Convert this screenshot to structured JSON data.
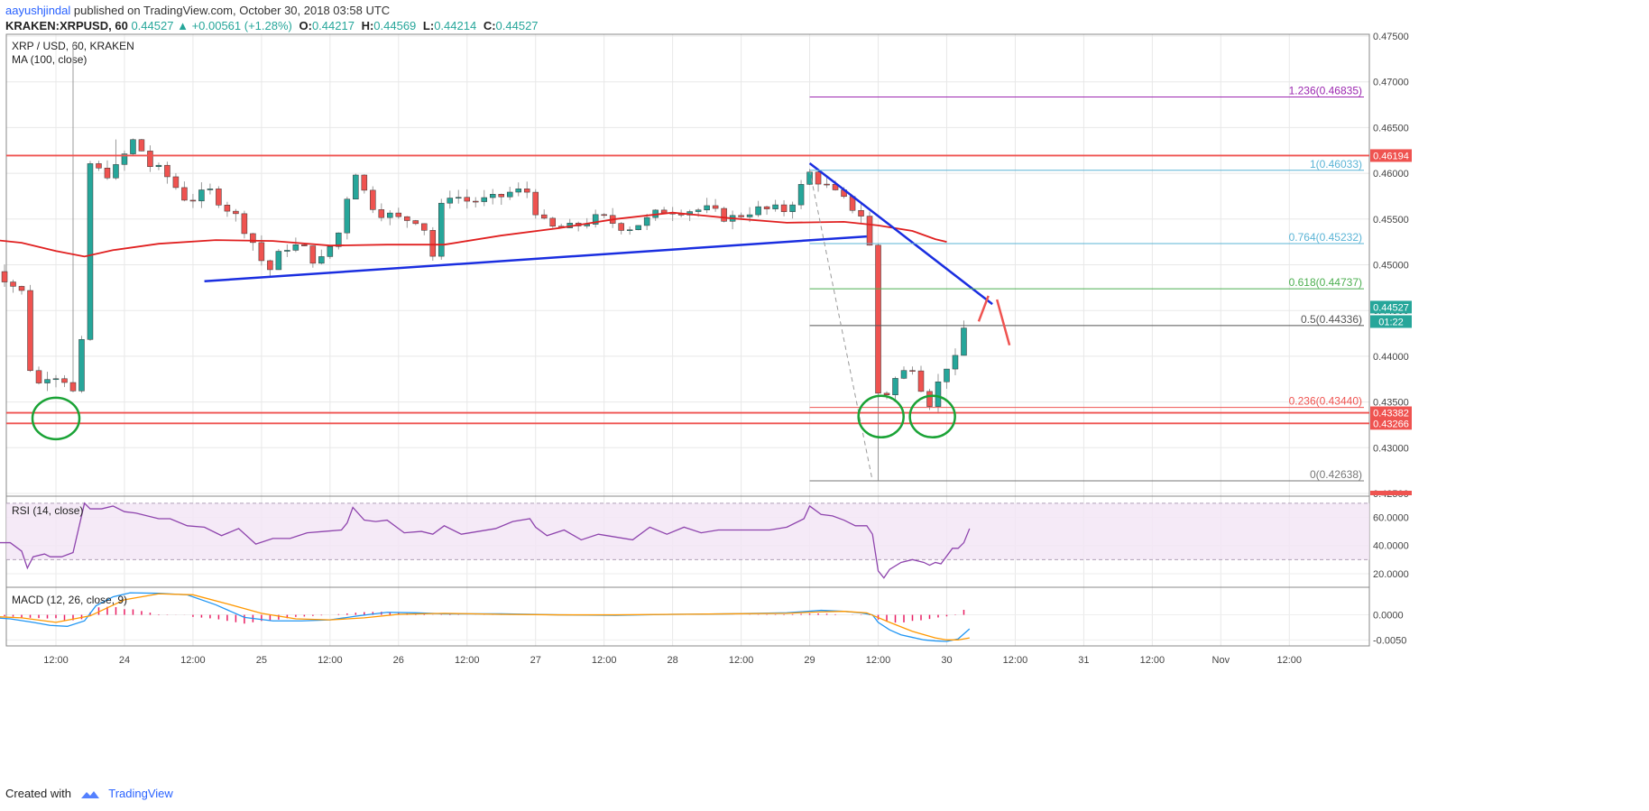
{
  "header": {
    "author": "aayushjindal",
    "published": "published on TradingView.com, October 30, 2018 03:58 UTC",
    "symbol": "KRAKEN:XRPUSD, 60",
    "last": "0.44527",
    "change_arrow": "▲",
    "change": "+0.00561 (+1.28%)",
    "o_label": "O:",
    "o": "0.44217",
    "h_label": "H:",
    "h": "0.44569",
    "l_label": "L:",
    "l": "0.44214",
    "c_label": "C:",
    "c": "0.44527"
  },
  "footer": {
    "created_with": "Created with",
    "brand": "TradingView",
    "logo_icon": "tradingview-logo-icon"
  },
  "colors": {
    "bull": "#26a69a",
    "bear": "#ef5350",
    "ma": "#e02020",
    "trend": "#1a2ee0",
    "fib_purple": "#9c27b0",
    "fib_cyan": "#5bb4d6",
    "fib_green": "#4caf50",
    "rsi": "#8e44ad",
    "macd": "#2196f3",
    "signal": "#ff9800",
    "hist": "#e91e63",
    "circle": "#1aa336"
  },
  "chart_data": [
    {
      "type": "candlestick",
      "title": "XRP / USD, 60, KRAKEN",
      "indicator": "MA (100, close)",
      "ylim": [
        0.4248,
        0.4752
      ],
      "y_ticks": [
        0.425,
        0.43,
        0.435,
        0.44,
        0.445,
        0.45,
        0.455,
        0.46,
        0.465,
        0.47,
        0.475
      ],
      "y_tick_labels": [
        "0.42500",
        "0.43000",
        "0.43500",
        "0.44000",
        "0.44500",
        "0.45000",
        "0.45500",
        "0.46000",
        "0.46500",
        "0.47000",
        "0.47500"
      ],
      "x_tick_labels": [
        "12:00",
        "24",
        "12:00",
        "25",
        "12:00",
        "26",
        "12:00",
        "27",
        "12:00",
        "28",
        "12:00",
        "29",
        "12:00",
        "30",
        "12:00",
        "31",
        "12:00",
        "Nov",
        "12:00"
      ],
      "x_tick_times": [
        12,
        24,
        36,
        48,
        60,
        72,
        84,
        96,
        108,
        120,
        132,
        144,
        156,
        168,
        180,
        192,
        204,
        216,
        228
      ],
      "time_unit": "hours since Oct 23 00:00",
      "close_path": [
        [
          0,
          0.4505
        ],
        [
          4,
          0.448
        ],
        [
          6,
          0.447
        ],
        [
          8,
          0.436
        ],
        [
          10,
          0.438
        ],
        [
          13,
          0.438
        ],
        [
          15,
          0.436
        ],
        [
          17,
          0.443
        ],
        [
          18,
          0.461
        ],
        [
          20,
          0.46
        ],
        [
          22,
          0.46
        ],
        [
          26,
          0.464
        ],
        [
          28,
          0.461
        ],
        [
          31,
          0.46
        ],
        [
          35,
          0.457
        ],
        [
          39,
          0.458
        ],
        [
          44,
          0.455
        ],
        [
          47,
          0.452
        ],
        [
          49,
          0.449
        ],
        [
          52,
          0.452
        ],
        [
          55,
          0.452
        ],
        [
          58,
          0.45
        ],
        [
          62,
          0.454
        ],
        [
          64,
          0.461
        ],
        [
          66,
          0.458
        ],
        [
          68,
          0.456
        ],
        [
          72,
          0.455
        ],
        [
          76,
          0.455
        ],
        [
          78,
          0.451
        ],
        [
          80,
          0.458
        ],
        [
          84,
          0.457
        ],
        [
          88,
          0.457
        ],
        [
          92,
          0.458
        ],
        [
          95,
          0.458
        ],
        [
          96,
          0.456
        ],
        [
          98,
          0.454
        ],
        [
          102,
          0.454
        ],
        [
          106,
          0.455
        ],
        [
          108,
          0.455
        ],
        [
          112,
          0.454
        ],
        [
          116,
          0.455
        ],
        [
          118,
          0.456
        ],
        [
          122,
          0.456
        ],
        [
          126,
          0.456
        ],
        [
          130,
          0.455
        ],
        [
          134,
          0.456
        ],
        [
          137,
          0.456
        ],
        [
          140,
          0.456
        ],
        [
          144,
          0.46
        ],
        [
          146,
          0.459
        ],
        [
          148,
          0.458
        ],
        [
          150,
          0.457
        ],
        [
          152,
          0.456
        ],
        [
          154,
          0.455
        ],
        [
          155,
          0.449
        ],
        [
          156,
          0.436
        ],
        [
          157,
          0.435
        ],
        [
          158,
          0.437
        ],
        [
          160,
          0.438
        ],
        [
          162,
          0.439
        ],
        [
          164,
          0.436
        ],
        [
          165,
          0.435
        ],
        [
          166,
          0.435
        ],
        [
          167,
          0.439
        ],
        [
          169,
          0.439
        ],
        [
          170,
          0.44
        ],
        [
          171,
          0.443
        ],
        [
          172,
          0.44527
        ]
      ],
      "candle_highs_notable": {
        "23-14h": 0.4742,
        "24-20h": 0.4637
      },
      "candle_lows_notable": {
        "29-12h": 0.42638
      },
      "ma100": [
        [
          0,
          0.4528
        ],
        [
          6,
          0.4524
        ],
        [
          12,
          0.4515
        ],
        [
          17,
          0.4509
        ],
        [
          22,
          0.4516
        ],
        [
          30,
          0.4523
        ],
        [
          40,
          0.4527
        ],
        [
          50,
          0.4526
        ],
        [
          60,
          0.4521
        ],
        [
          70,
          0.4522
        ],
        [
          80,
          0.4522
        ],
        [
          90,
          0.4532
        ],
        [
          100,
          0.454
        ],
        [
          110,
          0.455
        ],
        [
          120,
          0.4557
        ],
        [
          130,
          0.4551
        ],
        [
          140,
          0.4546
        ],
        [
          150,
          0.4547
        ],
        [
          156,
          0.4543
        ],
        [
          162,
          0.4537
        ],
        [
          166,
          0.4528
        ],
        [
          168,
          0.4525
        ]
      ],
      "horizontal_lines": [
        {
          "price": 0.46194,
          "label": "0.46194"
        },
        {
          "price": 0.43382,
          "label": "0.43382"
        },
        {
          "price": 0.43266,
          "label": "0.43266"
        }
      ],
      "support_trend_line": [
        [
          38,
          0.4482
        ],
        [
          154,
          0.4531
        ]
      ],
      "resistance_trend_line": [
        [
          144,
          0.4611
        ],
        [
          176,
          0.4457
        ]
      ],
      "fibonacci": [
        {
          "ratio": "1.236",
          "price": 0.46835,
          "label": "1.236(0.46835)"
        },
        {
          "ratio": "1",
          "price": 0.46033,
          "label": "1(0.46033)"
        },
        {
          "ratio": "0.764",
          "price": 0.45232,
          "label": "0.764(0.45232)"
        },
        {
          "ratio": "0.618",
          "price": 0.44737,
          "label": "0.618(0.44737)"
        },
        {
          "ratio": "0.5",
          "price": 0.44336,
          "label": "0.5(0.44336)"
        },
        {
          "ratio": "0.236",
          "price": 0.4344,
          "label": "0.236(0.43440)"
        },
        {
          "ratio": "0",
          "price": 0.42638,
          "label": "0(0.42638)"
        }
      ],
      "price_badges": [
        {
          "text": "0.44527"
        },
        {
          "text": "01:22"
        }
      ],
      "cut_label": "0.42344"
    },
    {
      "type": "line",
      "title": "RSI (14, close)",
      "ylim": [
        11,
        75
      ],
      "y_ticks": [
        20,
        40,
        60
      ],
      "y_tick_labels": [
        "20.0000",
        "40.0000",
        "60.0000"
      ],
      "band": [
        30,
        70
      ],
      "x": [
        0,
        2,
        4,
        6,
        7,
        8,
        10,
        11,
        12,
        13,
        15,
        17,
        18,
        20,
        22,
        24,
        26,
        28,
        30,
        32,
        35,
        38,
        41,
        44,
        47,
        50,
        53,
        56,
        59,
        62,
        63,
        64,
        66,
        68,
        70,
        73,
        76,
        78,
        80,
        83,
        86,
        89,
        92,
        95,
        96,
        98,
        101,
        104,
        107,
        110,
        113,
        116,
        119,
        122,
        125,
        128,
        131,
        134,
        137,
        140,
        143,
        144,
        146,
        148,
        150,
        152,
        154,
        155,
        156,
        157,
        158,
        160,
        162,
        164,
        165,
        166,
        167,
        169,
        170,
        171,
        172
      ],
      "values": [
        48,
        42,
        42,
        36,
        24,
        32,
        34,
        32,
        32,
        32,
        35,
        70,
        66,
        66,
        68,
        64,
        63,
        61,
        59,
        59,
        54,
        53,
        47,
        52,
        41,
        45,
        45,
        49,
        50,
        51,
        56,
        67,
        58,
        57,
        58,
        49,
        50,
        48,
        54,
        48,
        50,
        52,
        57,
        59,
        53,
        47,
        51,
        44,
        48,
        46,
        44,
        53,
        48,
        53,
        49,
        51,
        51,
        51,
        51,
        53,
        59,
        68,
        62,
        61,
        58,
        54,
        54,
        48,
        22,
        17,
        23,
        28,
        30,
        28,
        26,
        28,
        27,
        38,
        38,
        42,
        52
      ]
    },
    {
      "type": "line",
      "title": "MACD (12, 26, close, 9)",
      "ylim": [
        -0.0062,
        0.0055
      ],
      "y_ticks": [
        0,
        -0.005
      ],
      "y_tick_labels": [
        "0.0000",
        "-0.0050"
      ],
      "series": [
        {
          "name": "MACD",
          "x": [
            0,
            4,
            8,
            11,
            14,
            17,
            19,
            22,
            25,
            30,
            35,
            40,
            45,
            50,
            55,
            60,
            65,
            70,
            75,
            80,
            90,
            100,
            110,
            120,
            130,
            140,
            146,
            150,
            153,
            155,
            156,
            158,
            160,
            162,
            164,
            166,
            168,
            170,
            172
          ],
          "values": [
            -0.0005,
            -0.0008,
            -0.0015,
            -0.0021,
            -0.0023,
            -0.0012,
            0.0018,
            0.0036,
            0.0044,
            0.0043,
            0.004,
            0.002,
            -0.0005,
            -0.0012,
            -0.0012,
            -0.001,
            -0.0002,
            0.0005,
            0.0004,
            0.0002,
            0.0002,
            0.0,
            -0.0001,
            0.0001,
            0.0002,
            0.0004,
            0.0009,
            0.0007,
            0.0004,
            0.0,
            -0.0015,
            -0.003,
            -0.004,
            -0.0045,
            -0.005,
            -0.0052,
            -0.0053,
            -0.0048,
            -0.0028
          ]
        },
        {
          "name": "Signal",
          "x": [
            0,
            6,
            12,
            18,
            24,
            30,
            36,
            42,
            48,
            54,
            60,
            66,
            72,
            80,
            90,
            100,
            110,
            120,
            130,
            140,
            146,
            150,
            154,
            158,
            162,
            166,
            168,
            170,
            172
          ],
          "values": [
            -0.0003,
            -0.0006,
            -0.0015,
            -0.0002,
            0.003,
            0.0042,
            0.004,
            0.0022,
            0.0003,
            -0.0008,
            -0.001,
            -0.0006,
            0.0001,
            0.0003,
            0.0001,
            0.0,
            0.0,
            0.0001,
            0.0002,
            0.0003,
            0.0006,
            0.0007,
            0.0004,
            -0.0015,
            -0.0033,
            -0.0046,
            -0.005,
            -0.005,
            -0.0046
          ]
        }
      ]
    }
  ]
}
